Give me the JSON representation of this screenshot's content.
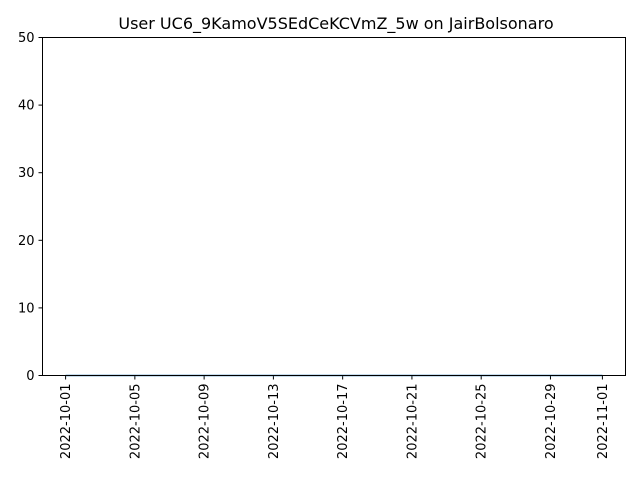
{
  "chart_data": {
    "type": "line",
    "title": "User UC6_9KamoV5SEdCeKCVmZ_5w on JairBolsonaro",
    "xlabel": "",
    "ylabel": "",
    "ylim": [
      0,
      50
    ],
    "xlim": [
      "2022-09-29T16:00",
      "2022-11-02T08:00"
    ],
    "y_ticks": [
      0,
      10,
      20,
      30,
      40,
      50
    ],
    "x_ticks": [
      "2022-10-01",
      "2022-10-05",
      "2022-10-09",
      "2022-10-13",
      "2022-10-17",
      "2022-10-21",
      "2022-10-25",
      "2022-10-29",
      "2022-11-01"
    ],
    "grid": false,
    "legend": "none",
    "series": [
      {
        "color": "#1f77b4",
        "x": [
          "2022-10-01",
          "2022-10-02",
          "2022-10-03",
          "2022-10-04",
          "2022-10-05",
          "2022-10-06",
          "2022-10-07",
          "2022-10-08",
          "2022-10-09",
          "2022-10-10",
          "2022-10-11",
          "2022-10-12",
          "2022-10-13",
          "2022-10-14",
          "2022-10-15",
          "2022-10-16",
          "2022-10-17",
          "2022-10-18",
          "2022-10-19",
          "2022-10-20",
          "2022-10-21",
          "2022-10-22",
          "2022-10-23",
          "2022-10-24",
          "2022-10-25",
          "2022-10-26",
          "2022-10-27",
          "2022-10-28",
          "2022-10-29",
          "2022-10-30",
          "2022-10-31",
          "2022-11-01"
        ],
        "values": [
          0,
          0,
          0,
          0,
          0,
          0,
          0,
          0,
          0,
          0,
          0,
          0,
          0,
          0,
          0,
          0,
          0,
          0,
          0,
          0,
          0,
          0,
          0,
          0,
          0,
          0,
          0,
          0,
          0,
          0,
          0,
          0
        ]
      }
    ]
  }
}
